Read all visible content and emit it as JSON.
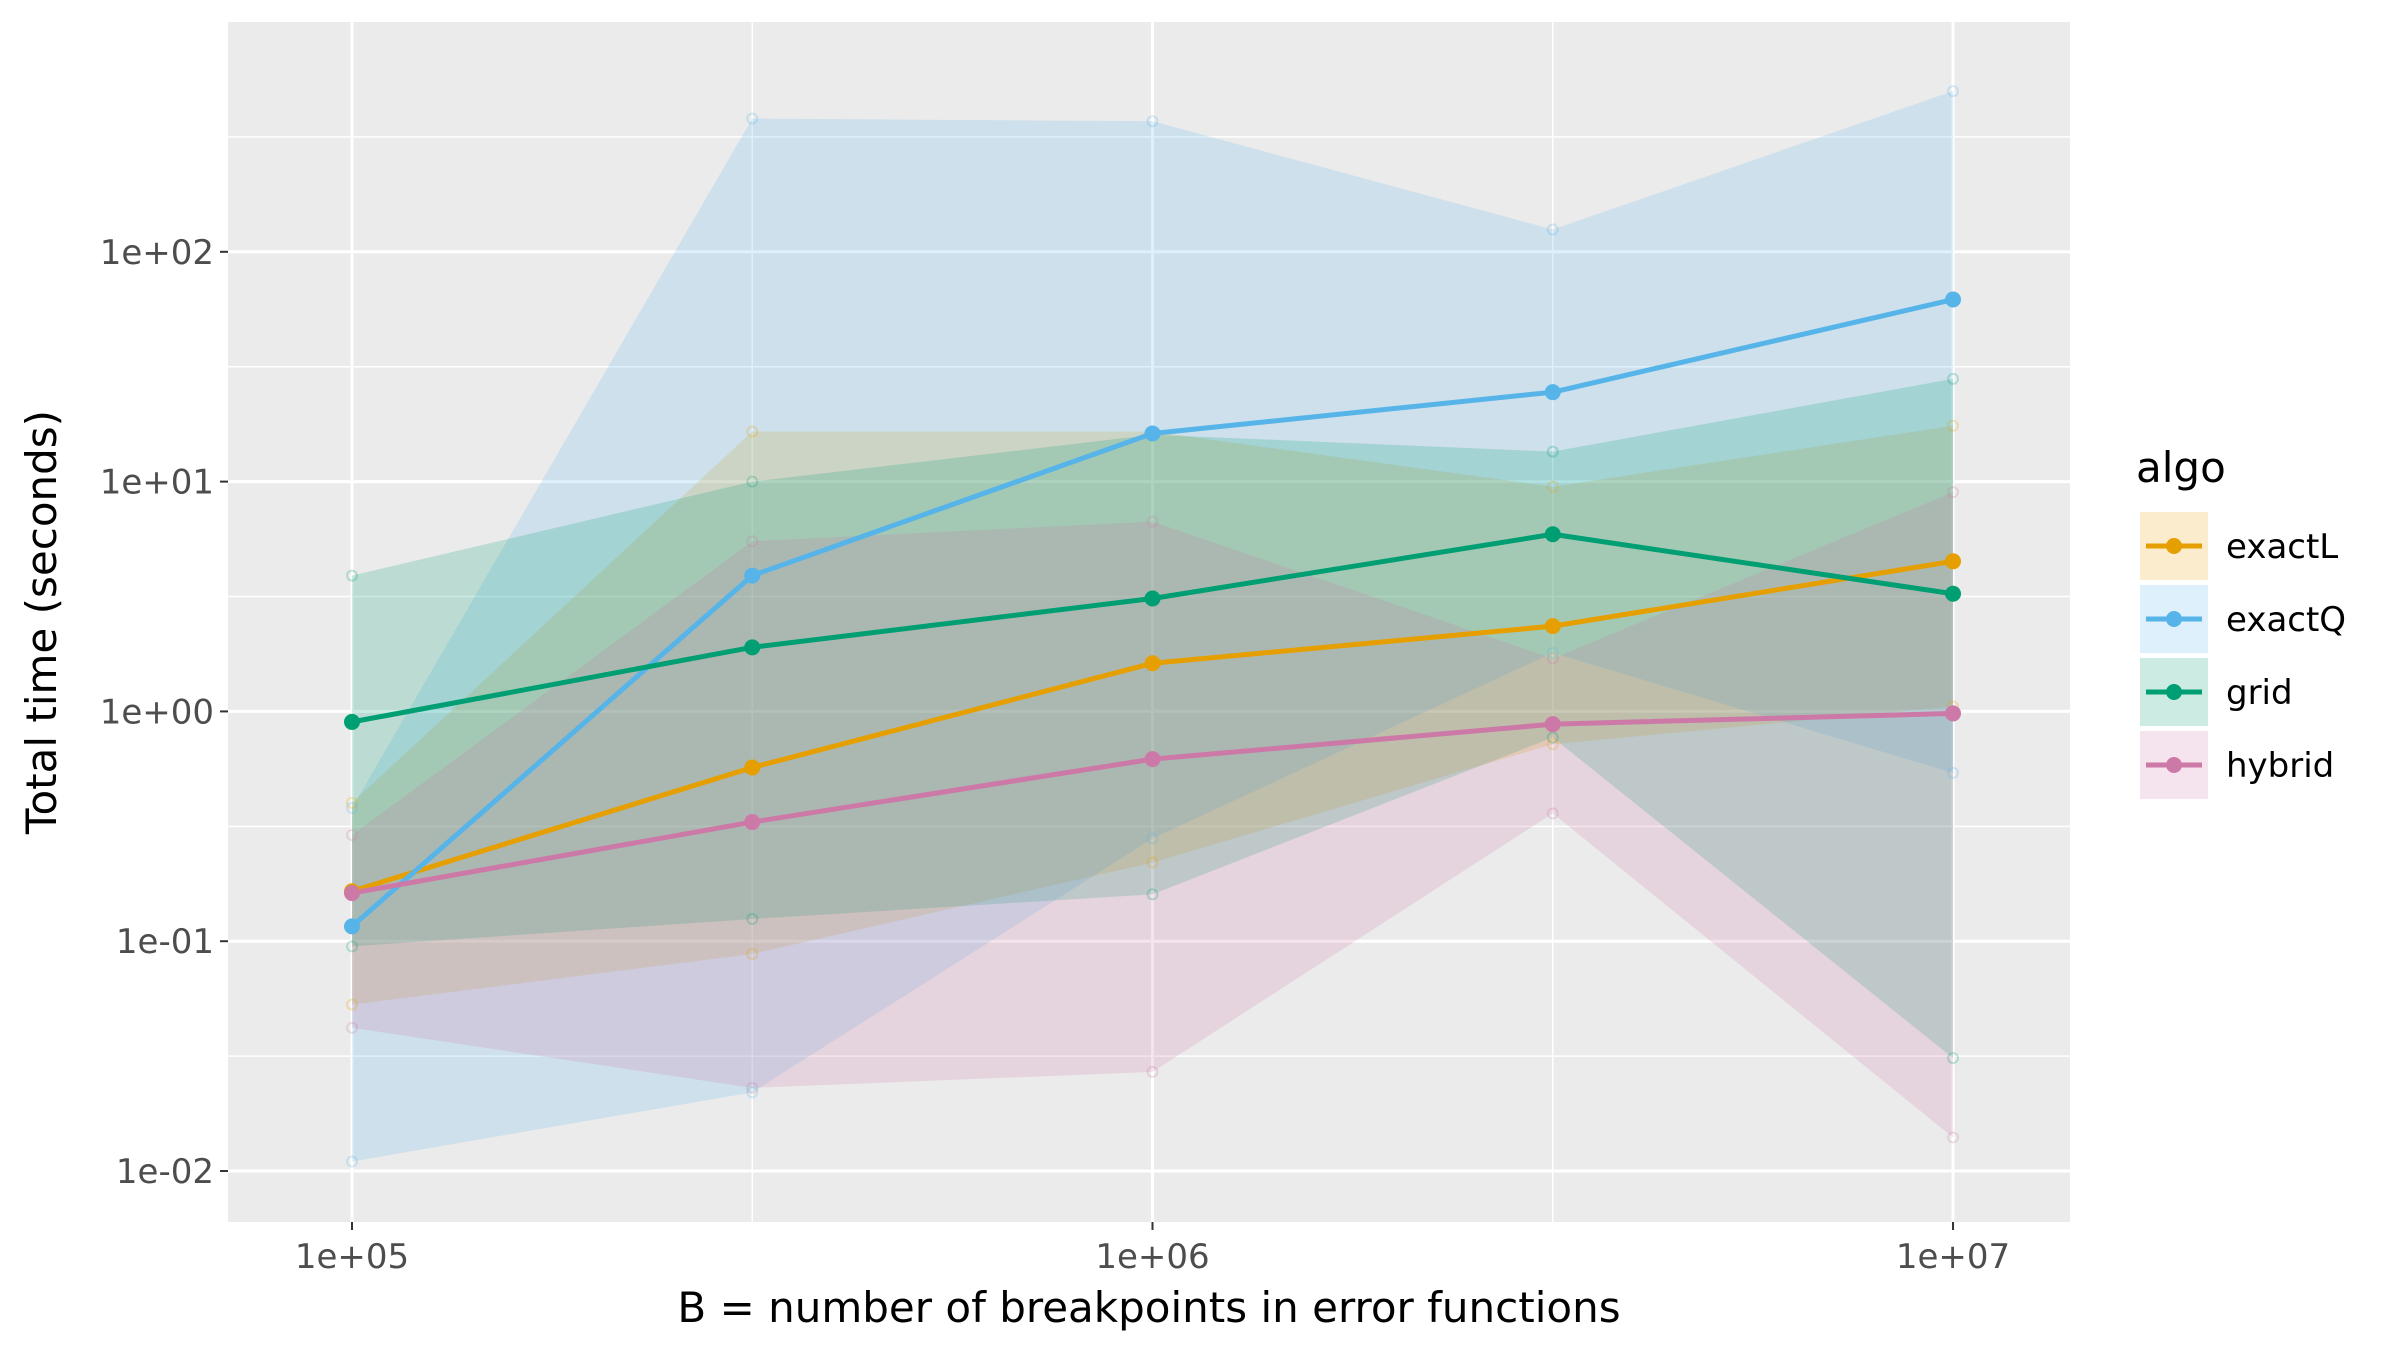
{
  "chart_data": {
    "type": "line",
    "title": "",
    "xlabel": "B = number of breakpoints in error functions",
    "ylabel": "Total time (seconds)",
    "x_scale": "log10",
    "y_scale": "log10",
    "x": [
      100000,
      316228,
      1000000,
      3162278,
      10000000
    ],
    "xlim": [
      70000,
      14000000
    ],
    "ylim": [
      0.006,
      1000
    ],
    "x_ticks": [
      {
        "value": 100000,
        "label": "1e+05"
      },
      {
        "value": 1000000,
        "label": "1e+06"
      },
      {
        "value": 10000000,
        "label": "1e+07"
      }
    ],
    "y_ticks": [
      {
        "value": 0.01,
        "label": "1e-02"
      },
      {
        "value": 0.1,
        "label": "1e-01"
      },
      {
        "value": 1,
        "label": "1e+00"
      },
      {
        "value": 10,
        "label": "1e+01"
      },
      {
        "value": 100,
        "label": "1e+02"
      }
    ],
    "grid": true,
    "legend": {
      "title": "algo",
      "position": "right"
    },
    "series": [
      {
        "name": "exactL",
        "color": "#E69F00",
        "values": [
          0.165,
          0.57,
          1.62,
          2.35,
          4.5
        ],
        "band_min": [
          0.053,
          0.088,
          0.22,
          0.72,
          1.05
        ],
        "band_max": [
          0.4,
          16.5,
          16.5,
          9.5,
          17.5
        ]
      },
      {
        "name": "exactQ",
        "color": "#56B4E9",
        "values": [
          0.116,
          3.9,
          16.2,
          24.5,
          62
        ],
        "band_min": [
          0.011,
          0.022,
          0.28,
          1.8,
          0.54
        ],
        "band_max": [
          0.38,
          380,
          370,
          125,
          500
        ]
      },
      {
        "name": "grid",
        "color": "#009E73",
        "values": [
          0.9,
          1.9,
          3.1,
          5.9,
          3.25
        ],
        "band_min": [
          0.095,
          0.125,
          0.16,
          0.77,
          0.031
        ],
        "band_max": [
          3.9,
          10,
          16,
          13.5,
          28
        ]
      },
      {
        "name": "hybrid",
        "color": "#CC79A7",
        "values": [
          0.162,
          0.33,
          0.62,
          0.88,
          0.98
        ],
        "band_min": [
          0.042,
          0.023,
          0.027,
          0.36,
          0.014
        ],
        "band_max": [
          0.29,
          5.5,
          6.7,
          1.7,
          9
        ]
      }
    ]
  }
}
